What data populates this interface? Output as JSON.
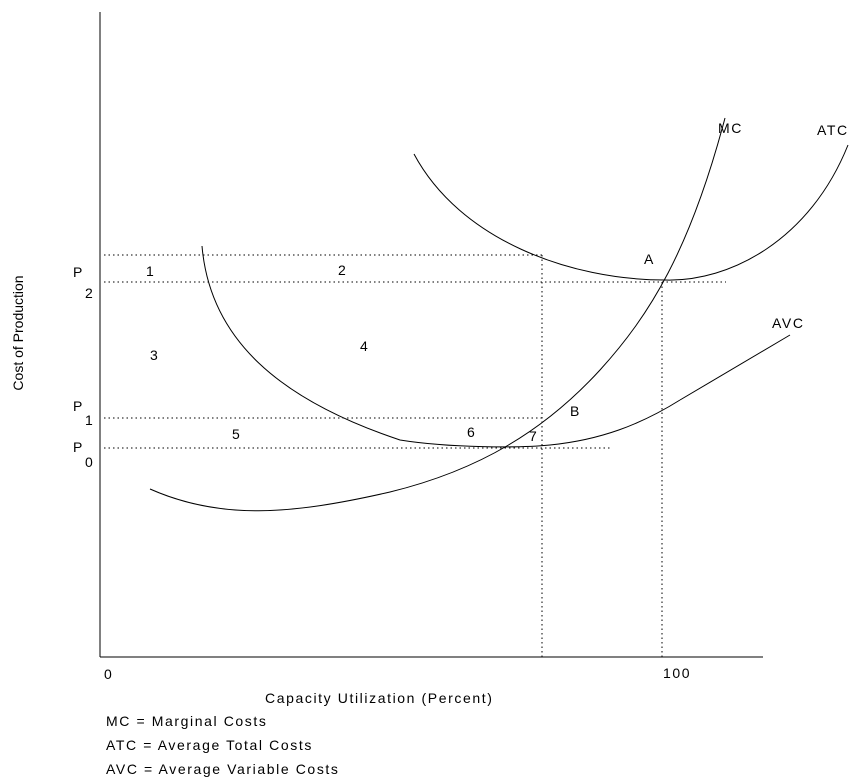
{
  "axes": {
    "y_label": "Cost of Production",
    "x_label": "Capacity Utilization (Percent)",
    "x_ticks": [
      "0",
      "100"
    ]
  },
  "price_levels": [
    {
      "letter": "P",
      "sub": "2"
    },
    {
      "letter": "P",
      "sub": "1"
    },
    {
      "letter": "P",
      "sub": "0"
    }
  ],
  "curve_labels": {
    "mc": "MC",
    "atc": "ATC",
    "avc": "AVC"
  },
  "points": {
    "a": "A",
    "b": "B"
  },
  "regions": [
    "1",
    "2",
    "3",
    "4",
    "5",
    "6",
    "7"
  ],
  "legend": [
    "MC = Marginal Costs",
    "ATC = Average Total Costs",
    "AVC = Average Variable Costs"
  ]
}
